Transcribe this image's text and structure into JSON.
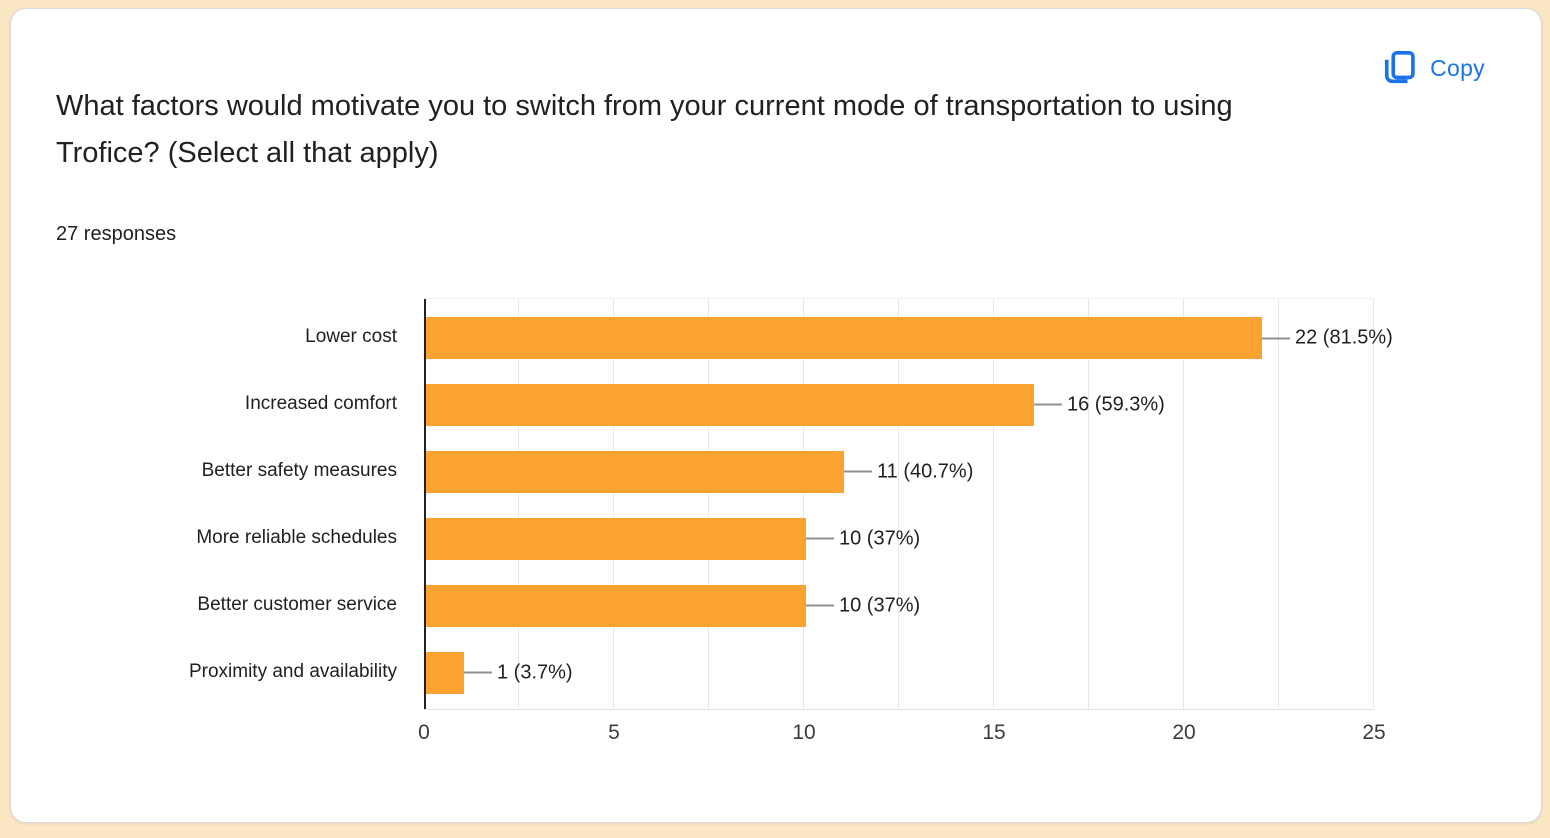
{
  "page": {
    "background_color": "#FBE7C4"
  },
  "card": {
    "title": "What factors would motivate you to switch from your current mode of transportation to using Trofice? (Select all that apply)",
    "responses_count": "27 responses",
    "copy_button": {
      "label": "Copy",
      "color": "#1a73e8"
    }
  },
  "chart_data": {
    "type": "bar",
    "orientation": "horizontal",
    "categories": [
      "Lower cost",
      "Increased comfort",
      "Better safety measures",
      "More reliable schedules",
      "Better customer service",
      "Proximity and availability"
    ],
    "values": [
      22,
      16,
      11,
      10,
      10,
      1
    ],
    "value_labels": [
      "22 (81.5%)",
      "16 (59.3%)",
      "11 (40.7%)",
      "10 (37%)",
      "10 (37%)",
      "1 (3.7%)"
    ],
    "total_responses": 27,
    "xlim": [
      0,
      25
    ],
    "x_ticks": [
      0,
      5,
      10,
      15,
      20,
      25
    ],
    "gridline_interval": 2.5,
    "grid": true,
    "legend": "none",
    "bar_color": "#FAA232",
    "axis_color": "#212121",
    "gridline_color": "#e9e9e9",
    "connector_color": "#909090"
  }
}
